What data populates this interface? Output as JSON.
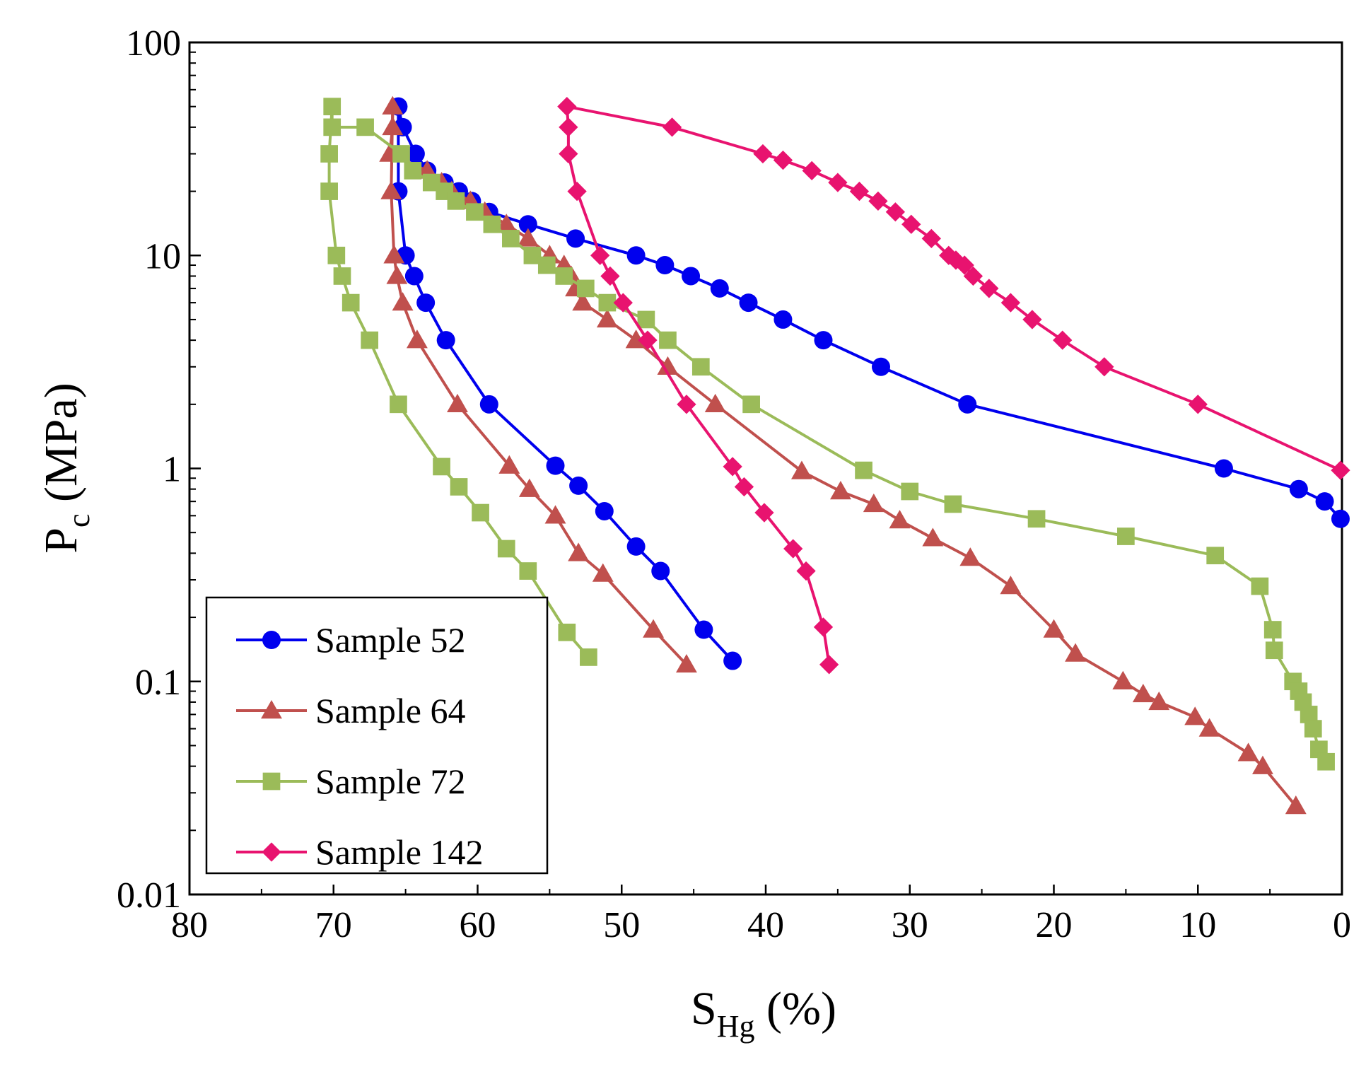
{
  "chart_data": {
    "type": "line",
    "title": "",
    "xlabel": {
      "main": "S",
      "sub": "Hg",
      "unit": " (%)"
    },
    "ylabel": {
      "main": "P",
      "sub": "c",
      "unit": " (MPa)"
    },
    "xlim": [
      80,
      0
    ],
    "ylim": [
      0.01,
      100
    ],
    "yscale": "log",
    "x_ticks": [
      80,
      70,
      60,
      50,
      40,
      30,
      20,
      10,
      0
    ],
    "y_ticks": [
      0.01,
      0.1,
      1,
      10,
      100
    ],
    "y_tick_labels": [
      "0.01",
      "0.1",
      "1",
      "10",
      "100"
    ],
    "legend_position": "bottom-left",
    "series": [
      {
        "name": "Sample 52",
        "color": "#0000ee",
        "marker": "circle",
        "points": [
          [
            65.5,
            50
          ],
          [
            65.2,
            40
          ],
          [
            64.3,
            30
          ],
          [
            63.5,
            25
          ],
          [
            62.3,
            22
          ],
          [
            61.3,
            20
          ],
          [
            60.4,
            18
          ],
          [
            59.2,
            16
          ],
          [
            56.5,
            14
          ],
          [
            53.2,
            12
          ],
          [
            49,
            10
          ],
          [
            47,
            9
          ],
          [
            45.2,
            8
          ],
          [
            43.2,
            7
          ],
          [
            41.2,
            6
          ],
          [
            38.8,
            5
          ],
          [
            36,
            4
          ],
          [
            32,
            3
          ],
          [
            26,
            2
          ],
          [
            8.2,
            1
          ],
          [
            3,
            0.8
          ],
          [
            1.2,
            0.7
          ],
          [
            0.1,
            0.58
          ],
          [
            65.5,
            20
          ],
          [
            65,
            10
          ],
          [
            64.4,
            8
          ],
          [
            63.6,
            6
          ],
          [
            62.2,
            4
          ],
          [
            59.2,
            2
          ],
          [
            54.6,
            1.03
          ],
          [
            53,
            0.83
          ],
          [
            51.2,
            0.63
          ],
          [
            49,
            0.43
          ],
          [
            47.3,
            0.33
          ],
          [
            44.3,
            0.175
          ],
          [
            42.3,
            0.125
          ]
        ]
      },
      {
        "name": "Sample 64",
        "color": "#c0504d",
        "marker": "triangle",
        "points": [
          [
            65.9,
            50
          ],
          [
            65.9,
            40
          ],
          [
            66.1,
            30
          ],
          [
            63.5,
            25
          ],
          [
            62.5,
            22
          ],
          [
            61.8,
            20
          ],
          [
            60.5,
            18
          ],
          [
            59.5,
            16
          ],
          [
            58,
            14
          ],
          [
            56.5,
            12
          ],
          [
            55,
            10
          ],
          [
            54,
            9
          ],
          [
            53.5,
            8
          ],
          [
            53.2,
            7
          ],
          [
            52.7,
            6
          ],
          [
            51,
            5
          ],
          [
            49,
            4
          ],
          [
            46.8,
            3
          ],
          [
            43.5,
            2
          ],
          [
            37.5,
            0.97
          ],
          [
            34.8,
            0.78
          ],
          [
            32.5,
            0.68
          ],
          [
            30.7,
            0.57
          ],
          [
            28.4,
            0.47
          ],
          [
            25.8,
            0.38
          ],
          [
            23,
            0.28
          ],
          [
            20,
            0.175
          ],
          [
            18.5,
            0.135
          ],
          [
            15.2,
            0.1
          ],
          [
            13.8,
            0.087
          ],
          [
            12.7,
            0.08
          ],
          [
            10.2,
            0.068
          ],
          [
            9.2,
            0.06
          ],
          [
            6.5,
            0.046
          ],
          [
            5.5,
            0.04
          ],
          [
            3.2,
            0.026
          ],
          [
            66,
            20
          ],
          [
            65.8,
            10
          ],
          [
            65.6,
            8
          ],
          [
            65.2,
            6
          ],
          [
            64.2,
            4
          ],
          [
            61.4,
            2
          ],
          [
            57.8,
            1.03
          ],
          [
            56.4,
            0.8
          ],
          [
            54.6,
            0.6
          ],
          [
            53,
            0.4
          ],
          [
            51.3,
            0.32
          ],
          [
            47.8,
            0.175
          ],
          [
            45.5,
            0.12
          ]
        ]
      },
      {
        "name": "Sample 72",
        "color": "#9bbb59",
        "marker": "square",
        "points": [
          [
            70.1,
            50
          ],
          [
            70.1,
            40
          ],
          [
            67.8,
            40
          ],
          [
            65.3,
            30
          ],
          [
            64.5,
            25
          ],
          [
            63.2,
            22
          ],
          [
            62.3,
            20
          ],
          [
            61.5,
            18
          ],
          [
            60.2,
            16
          ],
          [
            59,
            14
          ],
          [
            57.7,
            12
          ],
          [
            56.2,
            10
          ],
          [
            55.2,
            9
          ],
          [
            54,
            8
          ],
          [
            52.5,
            7
          ],
          [
            51,
            6
          ],
          [
            48.3,
            5
          ],
          [
            46.8,
            4
          ],
          [
            44.5,
            3
          ],
          [
            41,
            2
          ],
          [
            33.2,
            0.98
          ],
          [
            30,
            0.78
          ],
          [
            27,
            0.68
          ],
          [
            21.2,
            0.58
          ],
          [
            15,
            0.48
          ],
          [
            8.8,
            0.39
          ],
          [
            5.7,
            0.28
          ],
          [
            4.8,
            0.175
          ],
          [
            4.7,
            0.14
          ],
          [
            3.4,
            0.1
          ],
          [
            3,
            0.09
          ],
          [
            2.7,
            0.08
          ],
          [
            2.3,
            0.07
          ],
          [
            2,
            0.06
          ],
          [
            1.6,
            0.048
          ],
          [
            1.1,
            0.042
          ],
          [
            70.3,
            30
          ],
          [
            70.3,
            20
          ],
          [
            69.8,
            10
          ],
          [
            69.4,
            8
          ],
          [
            68.8,
            6
          ],
          [
            67.5,
            4
          ],
          [
            65.5,
            2
          ],
          [
            62.5,
            1.02
          ],
          [
            61.3,
            0.82
          ],
          [
            59.8,
            0.62
          ],
          [
            58,
            0.42
          ],
          [
            56.5,
            0.33
          ],
          [
            53.8,
            0.17
          ],
          [
            52.3,
            0.13
          ]
        ]
      },
      {
        "name": "Sample 142",
        "color": "#e8136f",
        "marker": "diamond",
        "points": [
          [
            53.8,
            50
          ],
          [
            46.5,
            40
          ],
          [
            40.2,
            30
          ],
          [
            38.8,
            28
          ],
          [
            36.8,
            25
          ],
          [
            35,
            22
          ],
          [
            33.5,
            20
          ],
          [
            32.2,
            18
          ],
          [
            31,
            16
          ],
          [
            29.9,
            14
          ],
          [
            28.5,
            12
          ],
          [
            27.3,
            10
          ],
          [
            26.8,
            9.5
          ],
          [
            26.2,
            9
          ],
          [
            25.6,
            8
          ],
          [
            24.5,
            7
          ],
          [
            23,
            6
          ],
          [
            21.5,
            5
          ],
          [
            19.4,
            4
          ],
          [
            16.5,
            3
          ],
          [
            10,
            2
          ],
          [
            0.1,
            0.98
          ],
          [
            53.7,
            40
          ],
          [
            53.7,
            30
          ],
          [
            53.1,
            20
          ],
          [
            51.5,
            10
          ],
          [
            50.8,
            8
          ],
          [
            49.9,
            6
          ],
          [
            48.2,
            4
          ],
          [
            45.5,
            2
          ],
          [
            42.3,
            1.02
          ],
          [
            41.5,
            0.82
          ],
          [
            40.1,
            0.62
          ],
          [
            38.1,
            0.42
          ],
          [
            37.2,
            0.33
          ],
          [
            36,
            0.18
          ],
          [
            35.6,
            0.12
          ]
        ]
      }
    ]
  }
}
